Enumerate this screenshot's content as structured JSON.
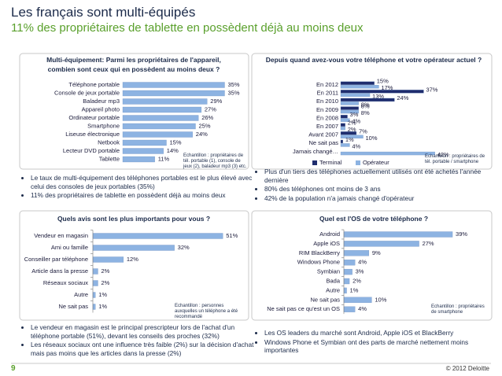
{
  "header": {
    "title": "Les français sont multi-équipés",
    "subtitle": "11% des propriétaires de tablette en possèdent déjà au moins deux"
  },
  "chart_data": [
    {
      "type": "bar",
      "orientation": "horizontal",
      "title": "Multi-équipement: Parmi les propriétaires de l'appareil, combien sont ceux qui en possèdent au moins deux ?",
      "categories": [
        "Téléphone portable",
        "Console de jeux portable",
        "Baladeur mp3",
        "Appareil photo",
        "Ordinateur portable",
        "Smartphone",
        "Liseuse électronique",
        "Netbook",
        "Lecteur DVD portable",
        "Tablette"
      ],
      "values": [
        35,
        35,
        29,
        27,
        26,
        25,
        24,
        15,
        14,
        11
      ],
      "value_labels": [
        "35%",
        "35%",
        "29%",
        "27%",
        "26%",
        "25%",
        "24%",
        "15%",
        "14%",
        "11%"
      ],
      "color": "#8db3e2",
      "note": "Echantillon : propriétaires de tél. portable (1), console de jeux (2), baladeur mp3 (3) etc."
    },
    {
      "type": "bar",
      "orientation": "horizontal",
      "title": "Depuis quand avez-vous votre téléphone et votre opérateur actuel ?",
      "categories": [
        "En 2012",
        "En 2011",
        "En 2010",
        "En 2009",
        "En 2008",
        "En 2007",
        "Avant 2007",
        "Ne sait pas",
        "Jamais changé…"
      ],
      "series": [
        {
          "name": "Terminal",
          "color": "#1f2d6e",
          "values": [
            15,
            37,
            24,
            8,
            3,
            2,
            7,
            1,
            null
          ],
          "value_labels": [
            "15%",
            "37%",
            "24%",
            "8%",
            "3%",
            "2%",
            "7%",
            "1%",
            null
          ]
        },
        {
          "name": "Opérateur",
          "color": "#8db3e2",
          "values": [
            17,
            13,
            8,
            8,
            4,
            2,
            10,
            4,
            42
          ],
          "value_labels": [
            "17%",
            "13%",
            "8%",
            "8%",
            "4%",
            "2%",
            "10%",
            "4%",
            "42%"
          ]
        }
      ],
      "legend": "bottom",
      "note": "Echantillon : propriétaires de tél. portable / smartphone"
    },
    {
      "type": "bar",
      "orientation": "horizontal",
      "title": "Quels avis sont les plus importants pour vous ?",
      "categories": [
        "Vendeur en magasin",
        "Ami ou famille",
        "Conseiller par téléphone",
        "Article dans la presse",
        "Réseaux sociaux",
        "Autre",
        "Ne sait pas"
      ],
      "values": [
        51,
        32,
        12,
        2,
        2,
        1,
        1
      ],
      "value_labels": [
        "51%",
        "32%",
        "12%",
        "2%",
        "2%",
        "1%",
        "1%"
      ],
      "color": "#8db3e2",
      "note": "Echantillon : personnes auxquelles un téléphone a été recommandé"
    },
    {
      "type": "bar",
      "orientation": "horizontal",
      "title": "Quel est l'OS de votre téléphone ?",
      "categories": [
        "Android",
        "Apple iOS",
        "RIM BlackBerry",
        "Windows Phone",
        "Symbian",
        "Bada",
        "Autre",
        "Ne sait pas",
        "Ne sait pas ce qu'est un OS"
      ],
      "values": [
        39,
        27,
        9,
        4,
        3,
        2,
        1,
        10,
        4
      ],
      "value_labels": [
        "39%",
        "27%",
        "9%",
        "4%",
        "3%",
        "2%",
        "1%",
        "10%",
        "4%"
      ],
      "color": "#8db3e2",
      "note": "Echantillon : propriétaires de smartphone"
    }
  ],
  "bullets": [
    [
      "Le taux de multi-équipement des téléphones portables est le plus élevé avec celui des consoles de jeux portables (35%)",
      "11% des propriétaires de tablette en possèdent déjà au moins deux"
    ],
    [
      "Plus d'un tiers des téléphones actuellement utilisés ont été achetés l'année dernière",
      "80% des téléphones ont moins de 3 ans",
      "42% de la population n'a jamais changé d'opérateur"
    ],
    [
      "Le vendeur en magasin est le principal prescripteur lors de l'achat d'un téléphone portable (51%), devant les conseils des proches (32%)",
      "Les réseaux sociaux ont une influence très faible (2%) sur la décision d'achat mais pas moins que les articles dans la presse (2%)"
    ],
    [
      "Les OS leaders du marché sont Android, Apple iOS et BlackBerry",
      "Windows Phone et Symbian ont des parts de marché nettement moins importantes"
    ]
  ],
  "footer": {
    "page": "9",
    "copyright": "© 2012 Deloitte"
  }
}
